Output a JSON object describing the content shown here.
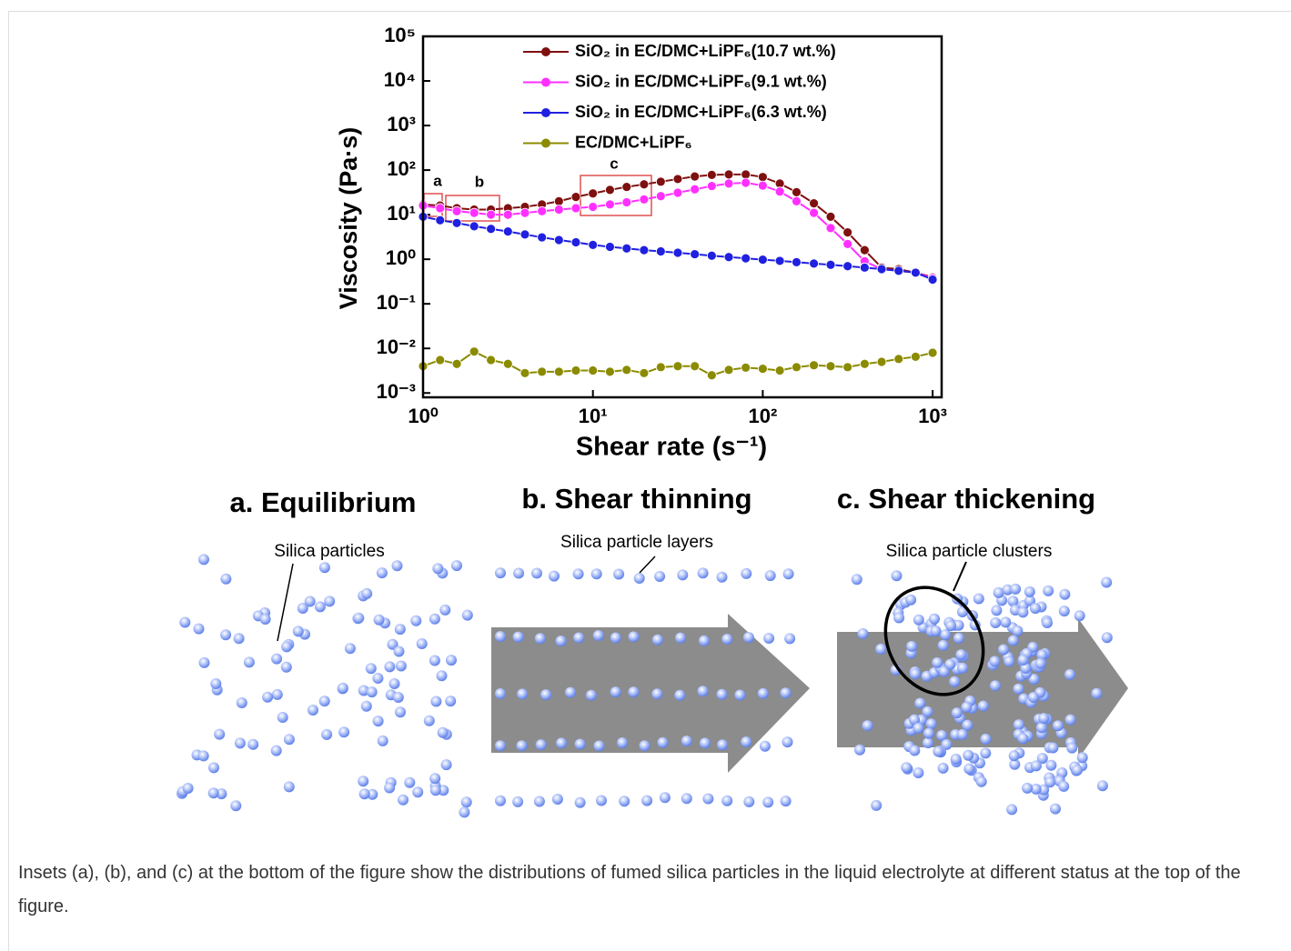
{
  "chart_data": {
    "type": "line",
    "x_label": "Shear rate (s⁻¹)",
    "y_label": "Viscosity (Pa·s)",
    "x": [
      1,
      1.26,
      1.58,
      2,
      2.51,
      3.16,
      3.98,
      5.01,
      6.31,
      7.94,
      10,
      12.6,
      15.8,
      20,
      25.1,
      31.6,
      39.8,
      50.1,
      63.1,
      79.4,
      100,
      126,
      158,
      200,
      251,
      316,
      398,
      501,
      631,
      794,
      1000
    ],
    "series": [
      {
        "name": "SiO₂ in EC/DMC+LiPF₆(10.7 wt.%)",
        "color": "#7f1010",
        "values": [
          17,
          16,
          14,
          13,
          13,
          14,
          15,
          17,
          20,
          25,
          30,
          36,
          42,
          48,
          55,
          63,
          72,
          78,
          80,
          80,
          70,
          50,
          32,
          18,
          9,
          4,
          1.6,
          0.65,
          0.6,
          0.5,
          0.4
        ]
      },
      {
        "name": "SiO₂ in EC/DMC+LiPF₆(9.1 wt.%)",
        "color": "#ff30ff",
        "values": [
          16,
          14,
          12,
          11,
          10,
          10,
          11,
          12,
          13,
          14,
          15,
          17,
          19,
          22,
          26,
          31,
          37,
          44,
          50,
          52,
          45,
          33,
          20,
          11,
          5,
          2.2,
          0.9,
          0.6,
          0.55,
          0.5,
          0.38
        ]
      },
      {
        "name": "SiO₂ in EC/DMC+LiPF₆(6.3 wt.%)",
        "color": "#2020e0",
        "values": [
          9,
          7.5,
          6.5,
          5.5,
          4.8,
          4.2,
          3.6,
          3.1,
          2.7,
          2.4,
          2.1,
          1.9,
          1.75,
          1.6,
          1.5,
          1.4,
          1.3,
          1.2,
          1.12,
          1.05,
          0.98,
          0.92,
          0.86,
          0.8,
          0.75,
          0.7,
          0.65,
          0.6,
          0.55,
          0.5,
          0.35
        ]
      },
      {
        "name": "EC/DMC+LiPF₆",
        "color": "#8b8b00",
        "values": [
          0.004,
          0.0055,
          0.0045,
          0.0085,
          0.0055,
          0.0045,
          0.0028,
          0.003,
          0.003,
          0.0032,
          0.0032,
          0.003,
          0.0033,
          0.0028,
          0.0038,
          0.004,
          0.004,
          0.0025,
          0.0033,
          0.0037,
          0.0035,
          0.0032,
          0.0038,
          0.0042,
          0.004,
          0.0038,
          0.0045,
          0.005,
          0.0058,
          0.0065,
          0.008
        ]
      }
    ],
    "xscale": "log",
    "yscale": "log",
    "xlim": [
      1,
      1130
    ],
    "ylim": [
      0.0008,
      100000
    ],
    "xticks": [
      {
        "value": 1,
        "label": "10⁰"
      },
      {
        "value": 10,
        "label": "10¹"
      },
      {
        "value": 100,
        "label": "10²"
      },
      {
        "value": 1000,
        "label": "10³"
      }
    ],
    "yticks": [
      {
        "value": 0.001,
        "label": "10⁻³"
      },
      {
        "value": 0.01,
        "label": "10⁻²"
      },
      {
        "value": 0.1,
        "label": "10⁻¹"
      },
      {
        "value": 1,
        "label": "10⁰"
      },
      {
        "value": 10,
        "label": "10¹"
      },
      {
        "value": 100,
        "label": "10²"
      },
      {
        "value": 1000,
        "label": "10³"
      },
      {
        "value": 10000,
        "label": "10⁴"
      },
      {
        "value": 100000,
        "label": "10⁵"
      }
    ],
    "legend": "upper right",
    "annotations": [
      "a",
      "b",
      "c"
    ]
  },
  "insets": [
    {
      "title": "a. Equilibrium",
      "label": "Silica particles"
    },
    {
      "title": "b. Shear thinning",
      "label": "Silica particle layers"
    },
    {
      "title": "c. Shear thickening",
      "label": "Silica particle clusters"
    }
  ],
  "caption": "Insets (a), (b), and (c) at the bottom of the figure show the distributions of fumed silica particles in the liquid electrolyte at different status at the top of the figure."
}
